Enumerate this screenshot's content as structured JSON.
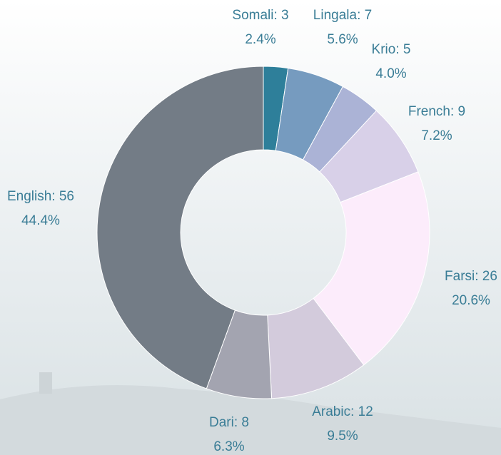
{
  "chart_data": {
    "type": "donut",
    "values": [
      3,
      7,
      5,
      9,
      26,
      12,
      8,
      56
    ],
    "value_labels": [
      "Somali: 3",
      "Lingala: 7",
      "Krio: 5",
      "French: 9",
      "Farsi: 26",
      "Arabic: 12",
      "Dari: 8",
      "English: 56"
    ],
    "percent_labels": [
      "2.4%",
      "5.6%",
      "4.0%",
      "7.2%",
      "20.6%",
      "9.5%",
      "6.3%",
      "44.4%"
    ],
    "colors": [
      "#2e7f9a",
      "#769bbf",
      "#abb3d6",
      "#d8d0e8",
      "#fcecfb",
      "#d3cbdc",
      "#a3a4b0",
      "#737c86"
    ]
  }
}
